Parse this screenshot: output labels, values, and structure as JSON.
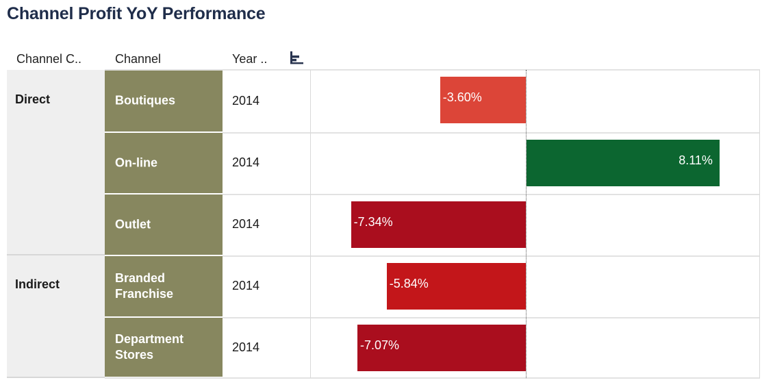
{
  "title": "Channel Profit YoY Performance",
  "headers": {
    "channel_category": "Channel C..",
    "channel": "Channel",
    "year": "Year .."
  },
  "icons": {
    "sort": "sort-descending-icon"
  },
  "colors": {
    "channel_cell": "#87875f",
    "category_cell": "#efefef",
    "positive_dark": "#0c6630",
    "negative_light": "#dc4538",
    "negative_mid": "#c3161a",
    "negative_dark": "#aa0e1e"
  },
  "rows": [
    {
      "category": "Direct",
      "channel": "Boutiques",
      "year": "2014",
      "value_label": "-3.60%"
    },
    {
      "category": "",
      "channel": "On-line",
      "year": "2014",
      "value_label": "8.11%"
    },
    {
      "category": "",
      "channel": "Outlet",
      "year": "2014",
      "value_label": "-7.34%"
    },
    {
      "category": "Indirect",
      "channel": "Branded Franchise",
      "year": "2014",
      "value_label": "-5.84%"
    },
    {
      "category": "",
      "channel": "Department Stores",
      "year": "2014",
      "value_label": "-7.07%"
    }
  ],
  "chart_data": {
    "type": "bar",
    "orientation": "horizontal",
    "title": "Channel Profit YoY Performance",
    "categories": [
      "Boutiques",
      "On-line",
      "Outlet",
      "Branded Franchise",
      "Department Stores"
    ],
    "groups": [
      "Direct",
      "Direct",
      "Direct",
      "Indirect",
      "Indirect"
    ],
    "values": [
      -3.6,
      8.11,
      -7.34,
      -5.84,
      -7.07
    ],
    "unit": "%",
    "bar_colors": [
      "#dc4538",
      "#0c6630",
      "#aa0e1e",
      "#c3161a",
      "#aa0e1e"
    ],
    "grid": false
  }
}
